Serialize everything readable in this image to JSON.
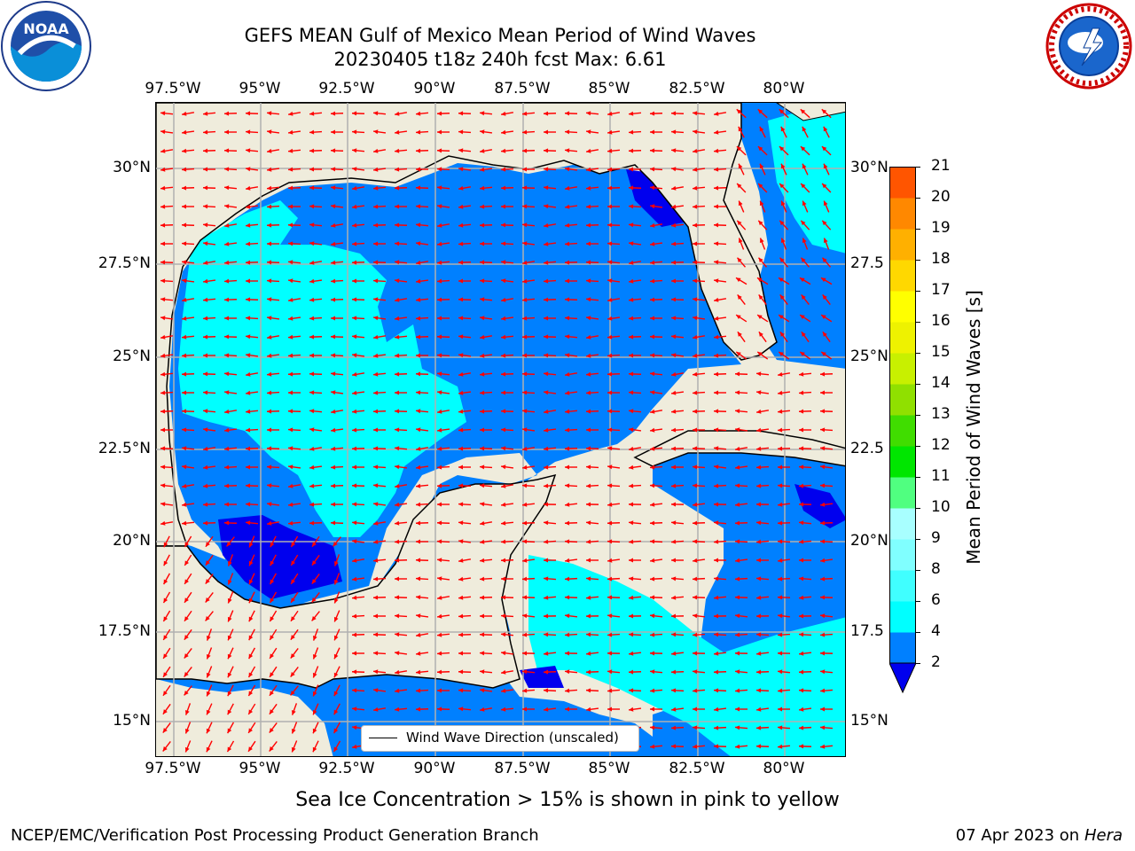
{
  "header": {
    "title_line1": "GEFS MEAN Gulf of Mexico Mean Period of Wind Waves",
    "title_line2": "20230405 t18z 240h fcst   Max: 6.61"
  },
  "logos": {
    "noaa": {
      "text": "NOAA",
      "ring_text": "NATIONAL OCEANIC AND ATMOSPHERIC ADMINISTRATION · U.S. DEPARTMENT OF COMMERCE"
    },
    "nws": {
      "ring_text": "NATIONAL WEATHER SERVICE"
    }
  },
  "map": {
    "lon_labels": [
      "97.5°W",
      "95°W",
      "92.5°W",
      "90°W",
      "87.5°W",
      "85°W",
      "82.5°W",
      "80°W"
    ],
    "lat_labels_left": [
      "30°N",
      "27.5°N",
      "25°N",
      "22.5°N",
      "20°N",
      "17.5°N",
      "15°N"
    ],
    "lat_labels_right": [
      "30°N",
      "27.5",
      "25°N",
      "22.5",
      "20°N",
      "17.5",
      "15°N"
    ],
    "legend_label": "Wind Wave Direction (unscaled)",
    "colors": {
      "land": "#efecdc",
      "level_2_4": "#0080ff",
      "level_4_6": "#00ffff",
      "level_6_8": "#40ffff",
      "below_2": "#0000ee",
      "arrows": "#ff0000",
      "grid": "#b0b0b0"
    }
  },
  "colorbar": {
    "label": "Mean Period of Wind Waves [s]",
    "ticks": [
      "2",
      "4",
      "6",
      "8",
      "9",
      "10",
      "11",
      "12",
      "13",
      "14",
      "15",
      "16",
      "17",
      "18",
      "19",
      "20",
      "21"
    ],
    "colors": [
      "#0080ff",
      "#00ffff",
      "#40ffff",
      "#80ffff",
      "#a8ffff",
      "#50ff80",
      "#00e600",
      "#40dd00",
      "#90e000",
      "#c8f000",
      "#eef200",
      "#ffff00",
      "#ffd800",
      "#ffb000",
      "#ff8800",
      "#ff5500",
      "#ff2800",
      "#ff0000"
    ],
    "extend_color": "#0000ee"
  },
  "note": "Sea Ice Concentration > 15% is shown in pink to yellow",
  "footer": {
    "left": "NCEP/EMC/Verification Post Processing Product Generation Branch",
    "right_date": "07 Apr 2023 on ",
    "right_host": "Hera"
  }
}
